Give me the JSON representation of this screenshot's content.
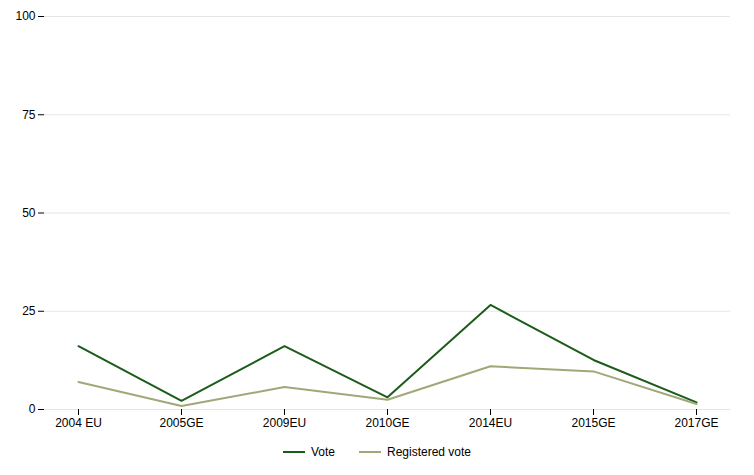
{
  "chart_data": {
    "type": "line",
    "categories": [
      "2004 EU",
      "2005GE",
      "2009EU",
      "2010GE",
      "2014EU",
      "2015GE",
      "2017GE"
    ],
    "series": [
      {
        "name": "Vote",
        "color": "#1a5c1a",
        "values": [
          16.1,
          2.2,
          16.1,
          3.1,
          26.6,
          12.6,
          1.8
        ]
      },
      {
        "name": "Registered vote",
        "color": "#a0a878",
        "values": [
          7.0,
          0.9,
          5.7,
          2.5,
          11.0,
          9.7,
          1.4
        ]
      }
    ],
    "ylim": [
      0,
      100
    ],
    "yticks": [
      0,
      25,
      50,
      75,
      100
    ],
    "grid": true,
    "legend": "bottom"
  }
}
